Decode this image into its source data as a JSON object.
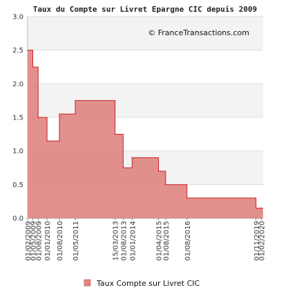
{
  "chart_data": {
    "type": "area",
    "title": "Taux du Compte sur Livret Epargne CIC depuis 2009",
    "credit": "© FranceTransactions.com",
    "xlabel": "",
    "ylabel": "",
    "ylim": [
      0,
      3.0
    ],
    "xlim": [
      "2009-02-01",
      "2020-03-01"
    ],
    "y_ticks": [
      "0.0",
      "0.5",
      "1.0",
      "1.5",
      "2.0",
      "2.5",
      "3.0"
    ],
    "grid": true,
    "step": true,
    "colors": {
      "fill": "#e08783",
      "line": "#cc1f1f",
      "band": "#f3f3f3"
    },
    "legend": {
      "placement": "bottom",
      "marker": "square"
    },
    "series": [
      {
        "name": "Taux Compte sur Livret CIC",
        "x": [
          "2009-02-01",
          "2009-05-01",
          "2009-08-01",
          "2010-01-01",
          "2010-08-01",
          "2011-05-01",
          "2013-03-15",
          "2013-08-01",
          "2014-01-01",
          "2015-04-01",
          "2015-08-01",
          "2016-08-01",
          "2019-11-01",
          "2020-02-01"
        ],
        "values": [
          2.5,
          2.25,
          1.5,
          1.15,
          1.55,
          1.75,
          1.25,
          0.75,
          0.9,
          0.7,
          0.5,
          0.3,
          0.15,
          0.15
        ]
      }
    ],
    "x_ticks": [
      {
        "date": "2009-02-01",
        "label": "01/02/2009"
      },
      {
        "date": "2009-05-01",
        "label": "01/05/2009"
      },
      {
        "date": "2009-08-01",
        "label": "01/08/2009"
      },
      {
        "date": "2010-01-01",
        "label": "01/01/2010"
      },
      {
        "date": "2010-08-01",
        "label": "01/08/2010"
      },
      {
        "date": "2011-05-01",
        "label": "01/05/2011"
      },
      {
        "date": "2013-03-15",
        "label": "15/03/2013"
      },
      {
        "date": "2013-08-01",
        "label": "01/08/2013"
      },
      {
        "date": "2014-01-01",
        "label": "01/01/2014"
      },
      {
        "date": "2015-04-01",
        "label": "01/04/2015"
      },
      {
        "date": "2015-08-01",
        "label": "01/08/2015"
      },
      {
        "date": "2016-08-01",
        "label": "01/08/2016"
      },
      {
        "date": "2019-11-01",
        "label": "01/11/2019"
      },
      {
        "date": "2020-02-01",
        "label": "01/02/2020"
      }
    ]
  }
}
